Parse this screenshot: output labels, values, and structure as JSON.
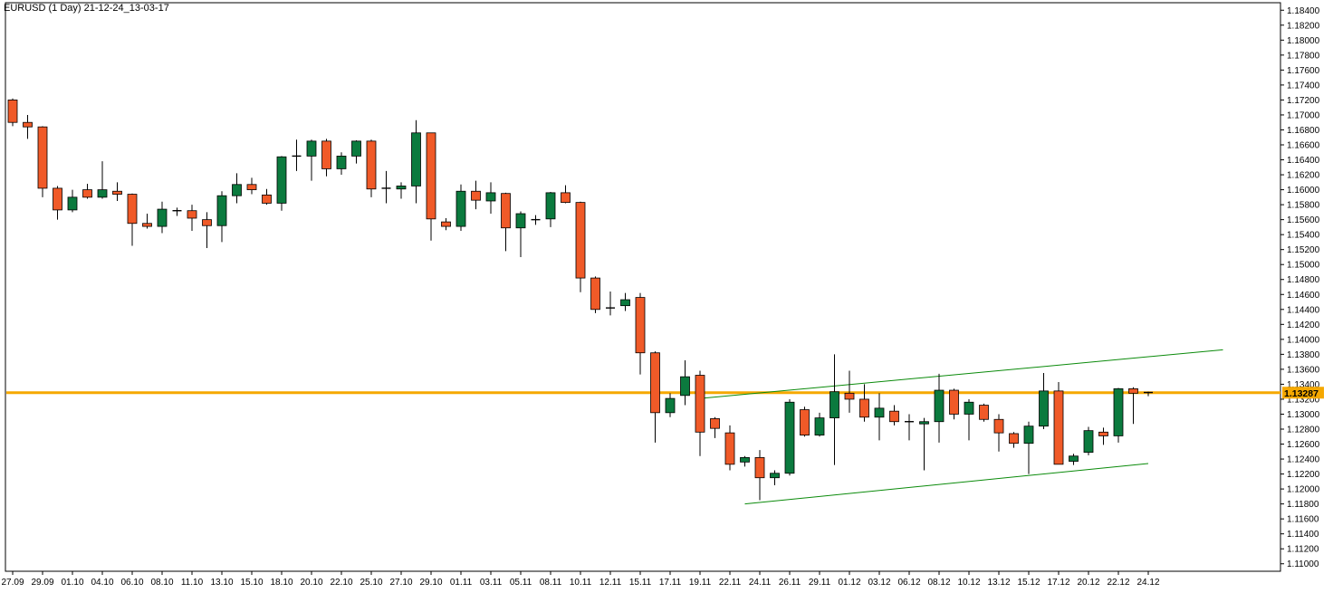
{
  "chart_data": {
    "type": "candlestick",
    "title": "EURUSD (1 Day) 21-12-24_13-03-17",
    "current_price_label": "1.13287",
    "current_price": 1.13287,
    "ylim": [
      1.109,
      1.185
    ],
    "y_ticks": [
      "1.18400",
      "1.18200",
      "1.18000",
      "1.17800",
      "1.17600",
      "1.17400",
      "1.17200",
      "1.17000",
      "1.16800",
      "1.16600",
      "1.16400",
      "1.16200",
      "1.16000",
      "1.15800",
      "1.15600",
      "1.15400",
      "1.15200",
      "1.15000",
      "1.14800",
      "1.14600",
      "1.14400",
      "1.14200",
      "1.14000",
      "1.13800",
      "1.13600",
      "1.13400",
      "1.13200",
      "1.13000",
      "1.12800",
      "1.12600",
      "1.12400",
      "1.12200",
      "1.12000",
      "1.11800",
      "1.11600",
      "1.11400",
      "1.11200",
      "1.11000"
    ],
    "x_ticks": [
      {
        "label": "27.09",
        "bar": 0
      },
      {
        "label": "29.09",
        "bar": 2
      },
      {
        "label": "01.10",
        "bar": 4
      },
      {
        "label": "04.10",
        "bar": 6
      },
      {
        "label": "06.10",
        "bar": 8
      },
      {
        "label": "08.10",
        "bar": 10
      },
      {
        "label": "11.10",
        "bar": 12
      },
      {
        "label": "13.10",
        "bar": 14
      },
      {
        "label": "15.10",
        "bar": 16
      },
      {
        "label": "18.10",
        "bar": 18
      },
      {
        "label": "20.10",
        "bar": 20
      },
      {
        "label": "22.10",
        "bar": 22
      },
      {
        "label": "25.10",
        "bar": 24
      },
      {
        "label": "27.10",
        "bar": 26
      },
      {
        "label": "29.10",
        "bar": 28
      },
      {
        "label": "01.11",
        "bar": 30
      },
      {
        "label": "03.11",
        "bar": 32
      },
      {
        "label": "05.11",
        "bar": 34
      },
      {
        "label": "08.11",
        "bar": 36
      },
      {
        "label": "10.11",
        "bar": 38
      },
      {
        "label": "12.11",
        "bar": 40
      },
      {
        "label": "15.11",
        "bar": 42
      },
      {
        "label": "17.11",
        "bar": 44
      },
      {
        "label": "19.11",
        "bar": 46
      },
      {
        "label": "22.11",
        "bar": 48
      },
      {
        "label": "24.11",
        "bar": 50
      },
      {
        "label": "26.11",
        "bar": 52
      },
      {
        "label": "29.11",
        "bar": 54
      },
      {
        "label": "01.12",
        "bar": 56
      },
      {
        "label": "03.12",
        "bar": 58
      },
      {
        "label": "06.12",
        "bar": 60
      },
      {
        "label": "08.12",
        "bar": 62
      },
      {
        "label": "10.12",
        "bar": 64
      },
      {
        "label": "13.12",
        "bar": 66
      },
      {
        "label": "15.12",
        "bar": 68
      },
      {
        "label": "17.12",
        "bar": 70
      },
      {
        "label": "20.12",
        "bar": 72
      },
      {
        "label": "22.12",
        "bar": 74
      },
      {
        "label": "24.12",
        "bar": 76
      }
    ],
    "candles": [
      {
        "o": 1.172,
        "h": 1.1722,
        "l": 1.1685,
        "c": 1.169
      },
      {
        "o": 1.169,
        "h": 1.17,
        "l": 1.1668,
        "c": 1.1684
      },
      {
        "o": 1.1684,
        "h": 1.1685,
        "l": 1.159,
        "c": 1.1602
      },
      {
        "o": 1.1602,
        "h": 1.1605,
        "l": 1.156,
        "c": 1.1573
      },
      {
        "o": 1.1573,
        "h": 1.16,
        "l": 1.157,
        "c": 1.159
      },
      {
        "o": 1.16,
        "h": 1.1608,
        "l": 1.1588,
        "c": 1.159
      },
      {
        "o": 1.159,
        "h": 1.1638,
        "l": 1.1588,
        "c": 1.16
      },
      {
        "o": 1.1598,
        "h": 1.161,
        "l": 1.1585,
        "c": 1.1594
      },
      {
        "o": 1.1594,
        "h": 1.1595,
        "l": 1.1525,
        "c": 1.1555
      },
      {
        "o": 1.1555,
        "h": 1.1568,
        "l": 1.1548,
        "c": 1.1551
      },
      {
        "o": 1.1551,
        "h": 1.1584,
        "l": 1.1542,
        "c": 1.1574
      },
      {
        "o": 1.1572,
        "h": 1.1576,
        "l": 1.1565,
        "c": 1.1571
      },
      {
        "o": 1.1572,
        "h": 1.158,
        "l": 1.1545,
        "c": 1.1562
      },
      {
        "o": 1.156,
        "h": 1.157,
        "l": 1.1522,
        "c": 1.1552
      },
      {
        "o": 1.1552,
        "h": 1.1598,
        "l": 1.153,
        "c": 1.1592
      },
      {
        "o": 1.1592,
        "h": 1.1622,
        "l": 1.1582,
        "c": 1.1607
      },
      {
        "o": 1.1607,
        "h": 1.1616,
        "l": 1.1594,
        "c": 1.16
      },
      {
        "o": 1.1593,
        "h": 1.1601,
        "l": 1.158,
        "c": 1.1582
      },
      {
        "o": 1.1582,
        "h": 1.1645,
        "l": 1.1572,
        "c": 1.1644
      },
      {
        "o": 1.1644,
        "h": 1.1667,
        "l": 1.1625,
        "c": 1.1645
      },
      {
        "o": 1.1645,
        "h": 1.1667,
        "l": 1.1612,
        "c": 1.1665
      },
      {
        "o": 1.1665,
        "h": 1.1668,
        "l": 1.1618,
        "c": 1.1628
      },
      {
        "o": 1.1628,
        "h": 1.165,
        "l": 1.162,
        "c": 1.1645
      },
      {
        "o": 1.1645,
        "h": 1.1666,
        "l": 1.1635,
        "c": 1.1665
      },
      {
        "o": 1.1665,
        "h": 1.1667,
        "l": 1.159,
        "c": 1.1601
      },
      {
        "o": 1.1601,
        "h": 1.1625,
        "l": 1.1582,
        "c": 1.1602
      },
      {
        "o": 1.1601,
        "h": 1.161,
        "l": 1.1588,
        "c": 1.1605
      },
      {
        "o": 1.1605,
        "h": 1.1693,
        "l": 1.1582,
        "c": 1.1676
      },
      {
        "o": 1.1676,
        "h": 1.1676,
        "l": 1.1532,
        "c": 1.1561
      },
      {
        "o": 1.1557,
        "h": 1.1562,
        "l": 1.1546,
        "c": 1.1551
      },
      {
        "o": 1.1551,
        "h": 1.1607,
        "l": 1.1545,
        "c": 1.1598
      },
      {
        "o": 1.1598,
        "h": 1.1612,
        "l": 1.1574,
        "c": 1.1586
      },
      {
        "o": 1.1585,
        "h": 1.161,
        "l": 1.1568,
        "c": 1.1596
      },
      {
        "o": 1.1595,
        "h": 1.1596,
        "l": 1.1518,
        "c": 1.1549
      },
      {
        "o": 1.1549,
        "h": 1.1571,
        "l": 1.151,
        "c": 1.1568
      },
      {
        "o": 1.1558,
        "h": 1.1566,
        "l": 1.1553,
        "c": 1.156
      },
      {
        "o": 1.1561,
        "h": 1.1597,
        "l": 1.155,
        "c": 1.1596
      },
      {
        "o": 1.1596,
        "h": 1.1606,
        "l": 1.1582,
        "c": 1.1583
      },
      {
        "o": 1.1583,
        "h": 1.1584,
        "l": 1.1463,
        "c": 1.1482
      },
      {
        "o": 1.1482,
        "h": 1.1484,
        "l": 1.1435,
        "c": 1.144
      },
      {
        "o": 1.1441,
        "h": 1.1464,
        "l": 1.1432,
        "c": 1.1442
      },
      {
        "o": 1.1445,
        "h": 1.1462,
        "l": 1.1438,
        "c": 1.1453
      },
      {
        "o": 1.1456,
        "h": 1.1462,
        "l": 1.1353,
        "c": 1.1382
      },
      {
        "o": 1.1382,
        "h": 1.1384,
        "l": 1.1262,
        "c": 1.1302
      },
      {
        "o": 1.1302,
        "h": 1.1328,
        "l": 1.1296,
        "c": 1.1321
      },
      {
        "o": 1.1325,
        "h": 1.1372,
        "l": 1.1312,
        "c": 1.135
      },
      {
        "o": 1.1352,
        "h": 1.1358,
        "l": 1.1244,
        "c": 1.1276
      },
      {
        "o": 1.1294,
        "h": 1.1296,
        "l": 1.1268,
        "c": 1.1281
      },
      {
        "o": 1.1275,
        "h": 1.1285,
        "l": 1.1225,
        "c": 1.1233
      },
      {
        "o": 1.1236,
        "h": 1.1244,
        "l": 1.123,
        "c": 1.1242
      },
      {
        "o": 1.1242,
        "h": 1.1252,
        "l": 1.1185,
        "c": 1.1215
      },
      {
        "o": 1.1215,
        "h": 1.1225,
        "l": 1.1205,
        "c": 1.1221
      },
      {
        "o": 1.1221,
        "h": 1.132,
        "l": 1.1218,
        "c": 1.1316
      },
      {
        "o": 1.1306,
        "h": 1.131,
        "l": 1.127,
        "c": 1.1272
      },
      {
        "o": 1.1272,
        "h": 1.1302,
        "l": 1.127,
        "c": 1.1295
      },
      {
        "o": 1.1295,
        "h": 1.138,
        "l": 1.1232,
        "c": 1.133
      },
      {
        "o": 1.1328,
        "h": 1.1358,
        "l": 1.1302,
        "c": 1.132
      },
      {
        "o": 1.132,
        "h": 1.134,
        "l": 1.129,
        "c": 1.1296
      },
      {
        "o": 1.1296,
        "h": 1.1328,
        "l": 1.1265,
        "c": 1.1308
      },
      {
        "o": 1.1304,
        "h": 1.1312,
        "l": 1.1285,
        "c": 1.129
      },
      {
        "o": 1.129,
        "h": 1.13,
        "l": 1.1265,
        "c": 1.1288
      },
      {
        "o": 1.1287,
        "h": 1.1295,
        "l": 1.1225,
        "c": 1.129
      },
      {
        "o": 1.129,
        "h": 1.1354,
        "l": 1.1262,
        "c": 1.1332
      },
      {
        "o": 1.1332,
        "h": 1.1334,
        "l": 1.1293,
        "c": 1.13
      },
      {
        "o": 1.13,
        "h": 1.132,
        "l": 1.1265,
        "c": 1.1316
      },
      {
        "o": 1.1312,
        "h": 1.1314,
        "l": 1.129,
        "c": 1.1293
      },
      {
        "o": 1.1293,
        "h": 1.13,
        "l": 1.125,
        "c": 1.1275
      },
      {
        "o": 1.1274,
        "h": 1.1276,
        "l": 1.1255,
        "c": 1.1261
      },
      {
        "o": 1.1261,
        "h": 1.129,
        "l": 1.122,
        "c": 1.1284
      },
      {
        "o": 1.1284,
        "h": 1.1355,
        "l": 1.128,
        "c": 1.1331
      },
      {
        "o": 1.1331,
        "h": 1.1343,
        "l": 1.1233,
        "c": 1.1233
      },
      {
        "o": 1.1237,
        "h": 1.1247,
        "l": 1.1232,
        "c": 1.1244
      },
      {
        "o": 1.1249,
        "h": 1.1283,
        "l": 1.1245,
        "c": 1.1278
      },
      {
        "o": 1.1276,
        "h": 1.1282,
        "l": 1.1259,
        "c": 1.1271
      },
      {
        "o": 1.1271,
        "h": 1.1335,
        "l": 1.1262,
        "c": 1.1334
      },
      {
        "o": 1.1334,
        "h": 1.1336,
        "l": 1.1287,
        "c": 1.1328
      },
      {
        "o": 1.1329,
        "h": 1.133,
        "l": 1.1324,
        "c": 1.1328
      }
    ],
    "trendlines": [
      {
        "name": "upper",
        "from": {
          "bar": 46,
          "price": 1.1321
        },
        "to": {
          "bar": 81,
          "price": 1.1386
        },
        "color": "#0a8a0a"
      },
      {
        "name": "lower",
        "from": {
          "bar": 49,
          "price": 1.118
        },
        "to": {
          "bar": 76,
          "price": 1.1234
        },
        "color": "#0a8a0a"
      }
    ],
    "horizontal_line": {
      "price": 1.13287,
      "color": "#f5a800"
    },
    "colors": {
      "bull": "#0b7a3e",
      "bear": "#f05a28",
      "wick": "#000000",
      "axis": "#000000",
      "price_box": "#f5a800"
    }
  }
}
